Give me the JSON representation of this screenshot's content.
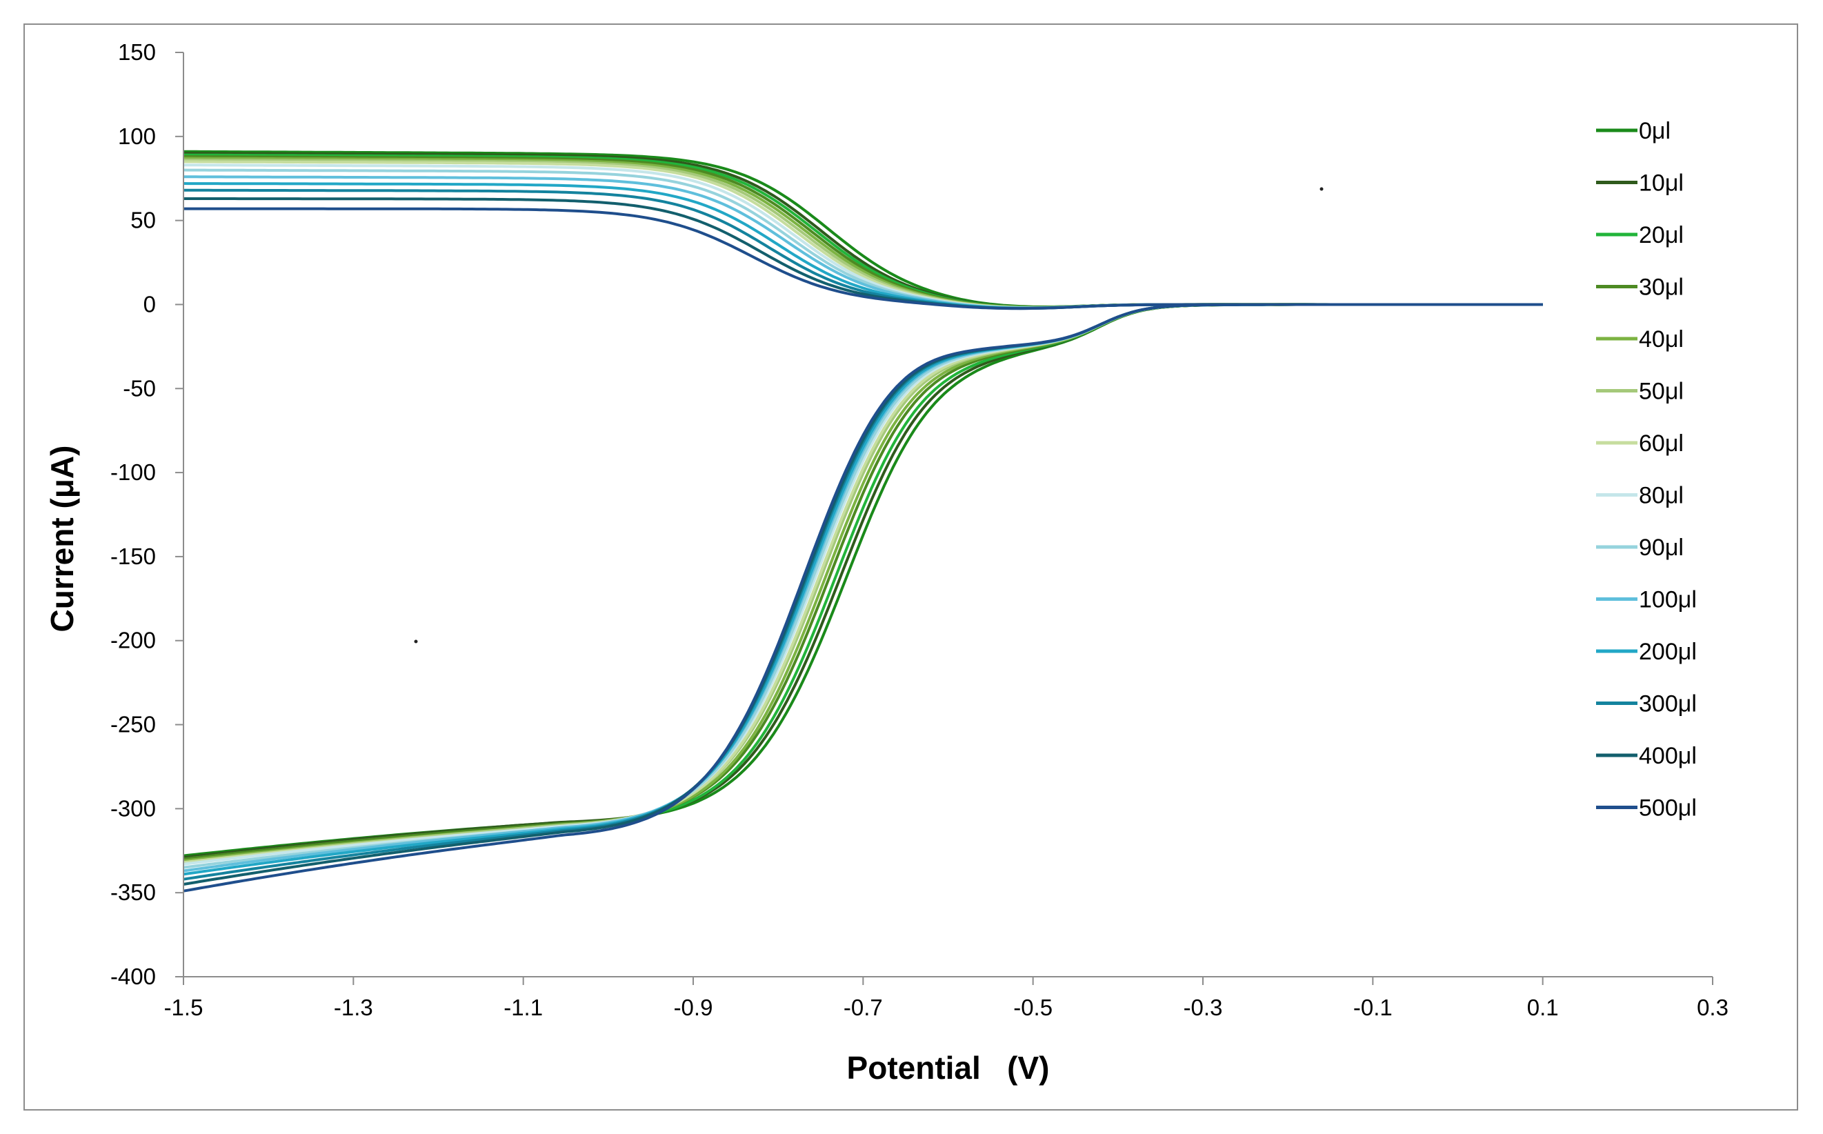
{
  "chart_data": {
    "type": "line",
    "title": "",
    "xlabel": "Potential   (V)",
    "ylabel": "Current (μA)",
    "xlim": [
      -1.5,
      0.3
    ],
    "ylim": [
      -400,
      150
    ],
    "x_ticks": [
      -1.5,
      -1.3,
      -1.1,
      -0.9,
      -0.7,
      -0.5,
      -0.3,
      -0.1,
      0.1,
      0.3
    ],
    "x_tick_labels": [
      "-1.5",
      "-1.3",
      "-1.1",
      "-0.9",
      "-0.7",
      "-0.5",
      "-0.3",
      "-0.1",
      "0.1",
      "0.3"
    ],
    "y_ticks": [
      150,
      100,
      50,
      0,
      -50,
      -100,
      -150,
      -200,
      -250,
      -300,
      -350,
      -400
    ],
    "y_tick_labels": [
      "150",
      "100",
      "50",
      "0",
      "-50",
      "-100",
      "-150",
      "-200",
      "-250",
      "-300",
      "-350",
      "-400"
    ],
    "grid": false,
    "legend_position": "right",
    "x_sweep_range": [
      -1.5,
      0.1
    ],
    "series": [
      {
        "name": "0μl",
        "color": "#1a8a1a",
        "upper_plateau": 91,
        "upper_half_wave": -0.74,
        "cathodic_half_wave": -0.715,
        "start_current": -328,
        "plateau_current": -309
      },
      {
        "name": "10μl",
        "color": "#2f5a1c",
        "upper_plateau": 90,
        "upper_half_wave": -0.75,
        "cathodic_half_wave": -0.722,
        "start_current": -329,
        "plateau_current": -309
      },
      {
        "name": "20μl",
        "color": "#22b43a",
        "upper_plateau": 89,
        "upper_half_wave": -0.755,
        "cathodic_half_wave": -0.728,
        "start_current": -330,
        "plateau_current": -310
      },
      {
        "name": "30μl",
        "color": "#4d8a22",
        "upper_plateau": 88,
        "upper_half_wave": -0.76,
        "cathodic_half_wave": -0.735,
        "start_current": -330,
        "plateau_current": -310
      },
      {
        "name": "40μl",
        "color": "#7cb342",
        "upper_plateau": 87,
        "upper_half_wave": -0.765,
        "cathodic_half_wave": -0.74,
        "start_current": -331,
        "plateau_current": -311
      },
      {
        "name": "50μl",
        "color": "#a5c97a",
        "upper_plateau": 86,
        "upper_half_wave": -0.77,
        "cathodic_half_wave": -0.745,
        "start_current": -332,
        "plateau_current": -311
      },
      {
        "name": "60μl",
        "color": "#c6dd9e",
        "upper_plateau": 85,
        "upper_half_wave": -0.775,
        "cathodic_half_wave": -0.748,
        "start_current": -332,
        "plateau_current": -312
      },
      {
        "name": "80μl",
        "color": "#c5e6ea",
        "upper_plateau": 83,
        "upper_half_wave": -0.78,
        "cathodic_half_wave": -0.752,
        "start_current": -333,
        "plateau_current": -312
      },
      {
        "name": "90μl",
        "color": "#96d3dd",
        "upper_plateau": 80,
        "upper_half_wave": -0.785,
        "cathodic_half_wave": -0.755,
        "start_current": -335,
        "plateau_current": -313
      },
      {
        "name": "100μl",
        "color": "#5fbfdc",
        "upper_plateau": 76,
        "upper_half_wave": -0.79,
        "cathodic_half_wave": -0.758,
        "start_current": -337,
        "plateau_current": -313
      },
      {
        "name": "200μl",
        "color": "#22a7c6",
        "upper_plateau": 72,
        "upper_half_wave": -0.8,
        "cathodic_half_wave": -0.76,
        "start_current": -339,
        "plateau_current": -314
      },
      {
        "name": "300μl",
        "color": "#14839e",
        "upper_plateau": 68,
        "upper_half_wave": -0.81,
        "cathodic_half_wave": -0.763,
        "start_current": -342,
        "plateau_current": -315
      },
      {
        "name": "400μl",
        "color": "#135f6d",
        "upper_plateau": 63,
        "upper_half_wave": -0.82,
        "cathodic_half_wave": -0.765,
        "start_current": -345,
        "plateau_current": -316
      },
      {
        "name": "500μl",
        "color": "#1f4e8c",
        "upper_plateau": 57,
        "upper_half_wave": -0.83,
        "cathodic_half_wave": -0.768,
        "start_current": -349,
        "plateau_current": -318
      }
    ]
  }
}
